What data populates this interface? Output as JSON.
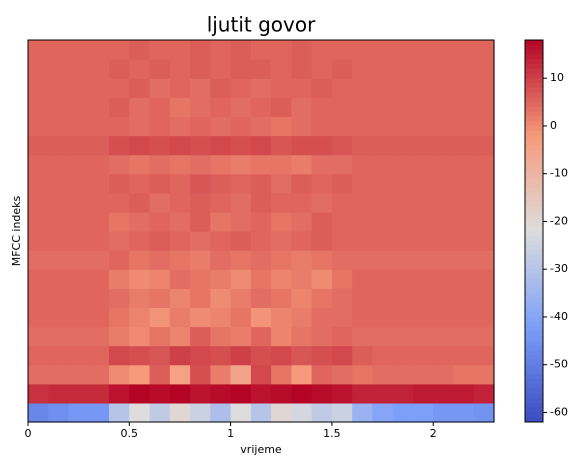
{
  "chart_data": {
    "type": "heatmap",
    "title": "ljutit govor",
    "x_label": "vrijeme",
    "y_label": "MFCC indeks",
    "colormap": "coolwarm",
    "clim": [
      -62,
      18
    ],
    "xlim": [
      0,
      2.3
    ],
    "xticks": [
      0,
      0.5,
      1,
      1.5,
      2
    ],
    "cticks": [
      10,
      0,
      -10,
      -20,
      -30,
      -40,
      -50,
      -60
    ],
    "z": [
      [
        -48,
        -46,
        -44,
        -44,
        -30,
        -22,
        -28,
        -20,
        -26,
        -32,
        -22,
        -30,
        -20,
        -24,
        -28,
        -26,
        -36,
        -40,
        -42,
        -42,
        -44,
        -44,
        -45
      ],
      [
        12,
        13,
        13,
        13,
        16,
        18,
        17,
        18,
        16,
        17,
        18,
        16,
        17,
        18,
        17,
        16,
        14,
        14,
        14,
        15,
        15,
        15,
        14
      ],
      [
        4,
        4,
        4,
        4,
        0,
        -2,
        6,
        -4,
        8,
        2,
        -5,
        9,
        3,
        -2,
        5,
        4,
        3,
        4,
        4,
        4,
        4,
        3,
        3
      ],
      [
        5,
        5,
        5,
        5,
        9,
        8,
        7,
        10,
        9,
        8,
        10,
        8,
        9,
        7,
        8,
        9,
        6,
        5,
        5,
        5,
        5,
        5,
        5
      ],
      [
        4,
        4,
        4,
        4,
        2,
        0,
        3,
        1,
        6,
        3,
        2,
        5,
        1,
        3,
        4,
        5,
        4,
        4,
        4,
        4,
        4,
        4,
        4
      ],
      [
        5,
        5,
        5,
        5,
        3,
        1,
        -1,
        2,
        0,
        1,
        3,
        -1,
        1,
        2,
        4,
        4,
        5,
        5,
        5,
        5,
        5,
        5,
        5
      ],
      [
        5,
        5,
        5,
        5,
        4,
        2,
        3,
        1,
        3,
        0,
        2,
        4,
        3,
        1,
        3,
        4,
        5,
        5,
        5,
        5,
        5,
        5,
        5
      ],
      [
        5,
        5,
        5,
        5,
        2,
        0,
        1,
        4,
        3,
        2,
        0,
        3,
        1,
        2,
        0,
        3,
        5,
        5,
        5,
        5,
        5,
        5,
        5
      ],
      [
        4,
        4,
        4,
        4,
        5,
        3,
        4,
        3,
        2,
        4,
        3,
        4,
        3,
        2,
        3,
        4,
        4,
        4,
        4,
        4,
        4,
        4,
        4
      ],
      [
        5,
        5,
        5,
        5,
        4,
        5,
        6,
        5,
        4,
        5,
        6,
        5,
        4,
        5,
        6,
        5,
        5,
        5,
        5,
        5,
        5,
        5,
        5
      ],
      [
        5,
        5,
        5,
        5,
        3,
        4,
        5,
        4,
        6,
        3,
        4,
        5,
        3,
        4,
        6,
        5,
        5,
        5,
        5,
        5,
        5,
        5,
        5
      ],
      [
        5,
        5,
        5,
        5,
        5,
        6,
        4,
        5,
        6,
        5,
        4,
        6,
        5,
        5,
        4,
        5,
        5,
        5,
        5,
        5,
        5,
        5,
        5
      ],
      [
        5,
        5,
        5,
        5,
        6,
        5,
        6,
        5,
        7,
        6,
        5,
        6,
        4,
        6,
        5,
        6,
        5,
        5,
        5,
        5,
        5,
        5,
        5
      ],
      [
        5,
        5,
        5,
        5,
        4,
        3,
        4,
        3,
        4,
        3,
        2,
        3,
        3,
        2,
        4,
        4,
        5,
        5,
        5,
        5,
        5,
        5,
        5
      ],
      [
        6,
        6,
        6,
        6,
        8,
        9,
        8,
        9,
        8,
        9,
        8,
        9,
        7,
        8,
        8,
        7,
        6,
        6,
        6,
        6,
        6,
        6,
        6
      ],
      [
        5,
        5,
        5,
        5,
        5,
        4,
        5,
        4,
        5,
        4,
        5,
        4,
        3,
        4,
        5,
        5,
        5,
        5,
        5,
        5,
        5,
        5,
        5
      ],
      [
        5,
        5,
        5,
        5,
        6,
        4,
        5,
        3,
        4,
        5,
        4,
        5,
        6,
        4,
        5,
        5,
        5,
        5,
        5,
        5,
        5,
        5,
        5
      ],
      [
        5,
        5,
        5,
        5,
        5,
        6,
        4,
        5,
        4,
        6,
        5,
        4,
        5,
        5,
        6,
        5,
        5,
        5,
        5,
        5,
        5,
        5,
        5
      ],
      [
        5,
        5,
        5,
        5,
        6,
        5,
        6,
        5,
        6,
        5,
        6,
        6,
        5,
        6,
        5,
        6,
        5,
        5,
        5,
        5,
        5,
        5,
        5
      ],
      [
        5,
        5,
        5,
        5,
        5,
        6,
        5,
        5,
        6,
        5,
        6,
        5,
        5,
        6,
        5,
        5,
        5,
        5,
        5,
        5,
        5,
        5,
        5
      ]
    ]
  }
}
